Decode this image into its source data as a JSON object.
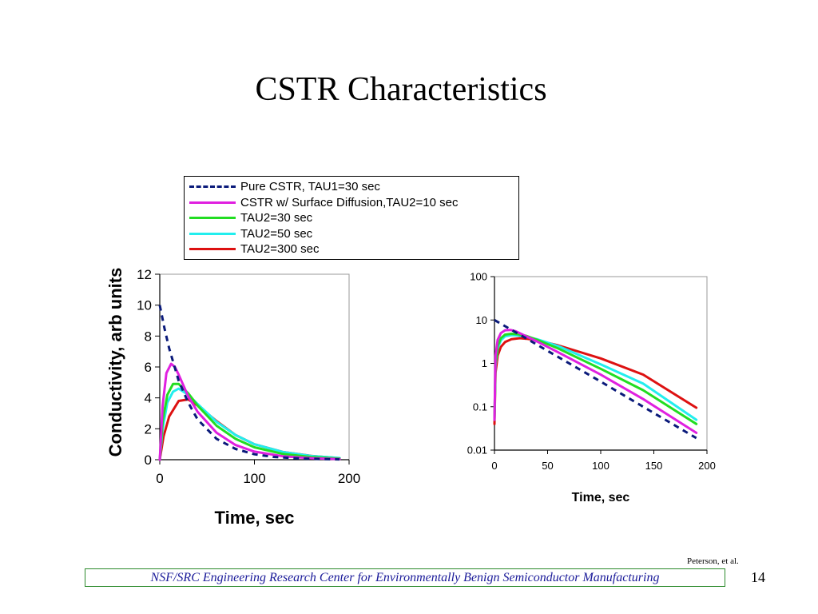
{
  "slide": {
    "title": "CSTR Characteristics",
    "credit": "Peterson, et al.",
    "footer": "NSF/SRC Engineering Research Center for Environmentally Benign Semiconductor Manufacturing",
    "page_number": "14"
  },
  "legend": {
    "items": [
      {
        "label": "Pure CSTR, TAU1=30 sec",
        "color": "#0a1a7a",
        "dashed": true
      },
      {
        "label": "CSTR w/ Surface Diffusion,TAU2=10 sec",
        "color": "#e020e0",
        "dashed": false
      },
      {
        "label": "TAU2=30 sec",
        "color": "#22dd22",
        "dashed": false
      },
      {
        "label": "TAU2=50 sec",
        "color": "#22eeee",
        "dashed": false
      },
      {
        "label": "TAU2=300 sec",
        "color": "#dd1111",
        "dashed": false
      }
    ]
  },
  "chart_data": [
    {
      "type": "line",
      "xlabel": "Time, sec",
      "ylabel": "Conductivity, arb units",
      "xlim": [
        0,
        200
      ],
      "ylim": [
        0,
        12
      ],
      "xticks": [
        "0",
        "100",
        "200"
      ],
      "yticks": [
        "0",
        "2",
        "4",
        "6",
        "8",
        "10",
        "12"
      ],
      "series": [
        {
          "name": "Pure CSTR, TAU1=30 sec",
          "color": "#0a1a7a",
          "dashed": true,
          "x": [
            0,
            5,
            10,
            20,
            30,
            40,
            60,
            80,
            100,
            120,
            150,
            190
          ],
          "y": [
            10,
            8.5,
            7.2,
            5.1,
            3.7,
            2.6,
            1.35,
            0.7,
            0.35,
            0.18,
            0.07,
            0.02
          ]
        },
        {
          "name": "CSTR w/ Surface Diffusion,TAU2=10 sec",
          "color": "#e020e0",
          "dashed": false,
          "x": [
            0,
            3,
            7,
            12,
            16,
            20,
            30,
            40,
            60,
            80,
            100,
            130,
            160,
            190
          ],
          "y": [
            0,
            3.5,
            5.6,
            6.2,
            6.0,
            5.5,
            4.1,
            3.1,
            1.75,
            0.95,
            0.52,
            0.22,
            0.1,
            0.04
          ]
        },
        {
          "name": "TAU2=30 sec",
          "color": "#22dd22",
          "dashed": false,
          "x": [
            0,
            3,
            8,
            14,
            20,
            30,
            40,
            60,
            80,
            100,
            130,
            160,
            190
          ],
          "y": [
            0,
            2.5,
            4.2,
            4.9,
            4.9,
            4.3,
            3.5,
            2.2,
            1.35,
            0.8,
            0.37,
            0.17,
            0.07
          ]
        },
        {
          "name": "TAU2=50 sec",
          "color": "#22eeee",
          "dashed": false,
          "x": [
            0,
            3,
            8,
            14,
            20,
            30,
            40,
            60,
            80,
            100,
            130,
            160,
            190
          ],
          "y": [
            0,
            2.0,
            3.7,
            4.4,
            4.6,
            4.2,
            3.6,
            2.45,
            1.6,
            1.0,
            0.5,
            0.24,
            0.11
          ]
        },
        {
          "name": "TAU2=300 sec",
          "color": "#dd1111",
          "dashed": false,
          "x": [
            0,
            4,
            10,
            20,
            30,
            40,
            60,
            80,
            100,
            130,
            160,
            190
          ],
          "y": [
            0,
            1.5,
            2.8,
            3.8,
            3.9,
            3.5,
            2.5,
            1.6,
            1.0,
            0.5,
            0.25,
            0.1
          ]
        }
      ]
    },
    {
      "type": "line",
      "xlabel": "Time, sec",
      "ylabel": "",
      "log_y": true,
      "xlim": [
        0,
        200
      ],
      "ylim": [
        0.01,
        100
      ],
      "xticks": [
        "0",
        "50",
        "100",
        "150",
        "200"
      ],
      "yticks": [
        "0.01",
        "0.1",
        "1",
        "10",
        "100"
      ],
      "series": [
        {
          "name": "Pure CSTR, TAU1=30 sec",
          "color": "#0a1a7a",
          "dashed": true,
          "x": [
            0,
            5,
            10,
            20,
            40,
            60,
            100,
            140,
            190
          ],
          "y": [
            10,
            8.5,
            7.2,
            5.2,
            2.7,
            1.4,
            0.38,
            0.1,
            0.019
          ]
        },
        {
          "name": "CSTR w/ Surface Diffusion,TAU2=10 sec",
          "color": "#e020e0",
          "dashed": false,
          "x": [
            0,
            1,
            3,
            6,
            10,
            15,
            20,
            30,
            40,
            60,
            100,
            140,
            190
          ],
          "y": [
            0.05,
            1.5,
            3.5,
            5.0,
            5.8,
            5.9,
            5.5,
            4.2,
            3.2,
            1.8,
            0.55,
            0.15,
            0.025
          ]
        },
        {
          "name": "TAU2=30 sec",
          "color": "#22dd22",
          "dashed": false,
          "x": [
            0,
            1,
            3,
            6,
            10,
            16,
            22,
            30,
            40,
            60,
            100,
            140,
            190
          ],
          "y": [
            0.05,
            1.0,
            2.5,
            3.8,
            4.6,
            4.8,
            4.7,
            4.3,
            3.5,
            2.2,
            0.75,
            0.24,
            0.04
          ]
        },
        {
          "name": "TAU2=50 sec",
          "color": "#22eeee",
          "dashed": false,
          "x": [
            0,
            1,
            3,
            6,
            10,
            16,
            22,
            30,
            40,
            60,
            100,
            140,
            190
          ],
          "y": [
            0.05,
            0.9,
            2.2,
            3.4,
            4.2,
            4.5,
            4.4,
            4.1,
            3.6,
            2.5,
            0.95,
            0.34,
            0.05
          ]
        },
        {
          "name": "TAU2=300 sec",
          "color": "#dd1111",
          "dashed": false,
          "x": [
            0,
            1,
            3,
            6,
            10,
            16,
            24,
            30,
            40,
            60,
            100,
            140,
            190
          ],
          "y": [
            0.04,
            0.6,
            1.5,
            2.4,
            3.1,
            3.6,
            3.8,
            3.7,
            3.4,
            2.6,
            1.3,
            0.55,
            0.095
          ]
        }
      ]
    }
  ]
}
